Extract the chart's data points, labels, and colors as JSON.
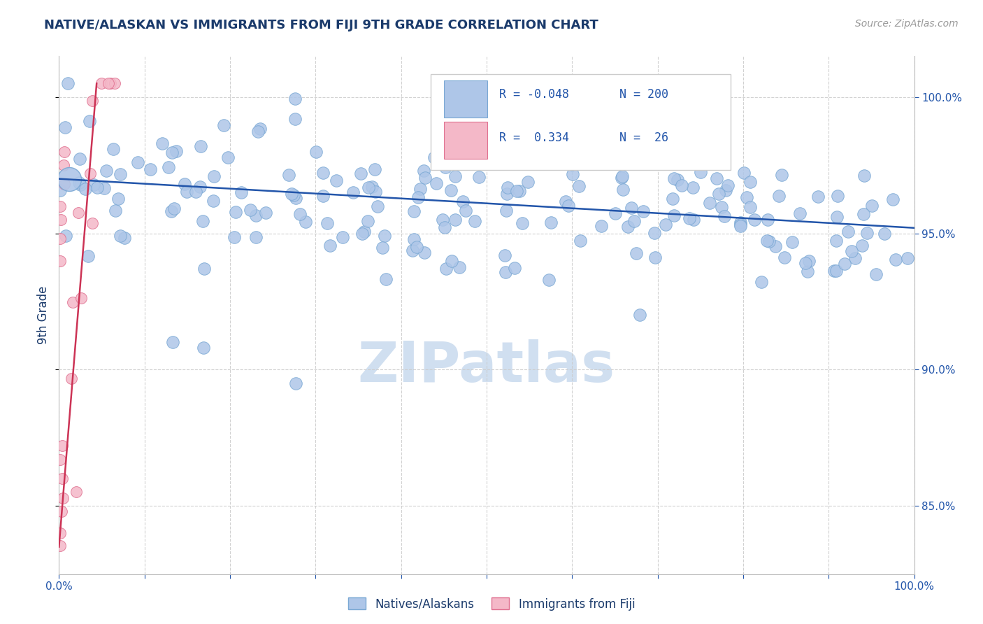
{
  "title": "NATIVE/ALASKAN VS IMMIGRANTS FROM FIJI 9TH GRADE CORRELATION CHART",
  "source_text": "Source: ZipAtlas.com",
  "ylabel": "9th Grade",
  "blue_R": -0.048,
  "blue_N": 200,
  "pink_R": 0.334,
  "pink_N": 26,
  "blue_color": "#aec6e8",
  "blue_edge": "#7aa8d4",
  "pink_color": "#f4b8c8",
  "pink_edge": "#e07090",
  "blue_line_color": "#2255aa",
  "pink_line_color": "#cc3355",
  "title_color": "#1a3a6b",
  "axis_label_color": "#1a3a6b",
  "tick_color": "#2255aa",
  "watermark_color": "#d0dff0",
  "ylim_min": 0.825,
  "ylim_max": 1.015,
  "blue_line_x0": 0.0,
  "blue_line_x1": 1.0,
  "blue_line_y0": 0.97,
  "blue_line_y1": 0.952,
  "pink_line_x0": 0.0,
  "pink_line_x1": 0.044,
  "pink_line_y0": 0.835,
  "pink_line_y1": 1.005,
  "yticks": [
    0.85,
    0.9,
    0.95,
    1.0
  ],
  "ytick_labels": [
    "85.0%",
    "90.0%",
    "95.0%",
    "100.0%"
  ],
  "xtick_positions": [
    0.0,
    0.1,
    0.2,
    0.3,
    0.4,
    0.5,
    0.6,
    0.7,
    0.8,
    0.9,
    1.0
  ],
  "legend_R_blue": "R = -0.048",
  "legend_N_blue": "N = 200",
  "legend_R_pink": "R =  0.334",
  "legend_N_pink": "N =  26"
}
